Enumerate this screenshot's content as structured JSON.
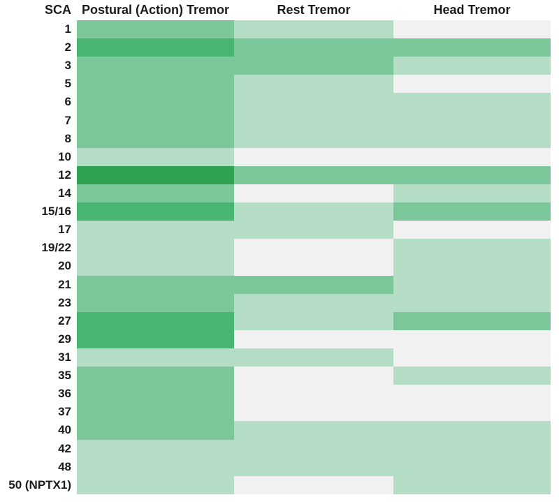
{
  "chart_data": {
    "type": "heatmap",
    "title": "",
    "row_label_header": "SCA",
    "columns": [
      "Postural (Action) Tremor",
      "Rest Tremor",
      "Head Tremor"
    ],
    "rows": [
      "1",
      "2",
      "3",
      "5",
      "6",
      "7",
      "8",
      "10",
      "12",
      "14",
      "15/16",
      "17",
      "19/22",
      "20",
      "21",
      "23",
      "27",
      "29",
      "31",
      "35",
      "36",
      "37",
      "40",
      "42",
      "48",
      "50 (NPTX1)"
    ],
    "values": [
      [
        2,
        1,
        0
      ],
      [
        3,
        2,
        2
      ],
      [
        2,
        2,
        1
      ],
      [
        2,
        1,
        0
      ],
      [
        2,
        1,
        1
      ],
      [
        2,
        1,
        1
      ],
      [
        2,
        1,
        1
      ],
      [
        1,
        0,
        0
      ],
      [
        4,
        2,
        2
      ],
      [
        2,
        0,
        1
      ],
      [
        3,
        1,
        2
      ],
      [
        1,
        1,
        0
      ],
      [
        1,
        0,
        1
      ],
      [
        1,
        0,
        1
      ],
      [
        2,
        2,
        1
      ],
      [
        2,
        1,
        1
      ],
      [
        3,
        1,
        2
      ],
      [
        3,
        0,
        0
      ],
      [
        1,
        1,
        0
      ],
      [
        2,
        0,
        1
      ],
      [
        2,
        0,
        0
      ],
      [
        2,
        0,
        0
      ],
      [
        2,
        1,
        1
      ],
      [
        1,
        1,
        1
      ],
      [
        1,
        1,
        1
      ],
      [
        1,
        0,
        1
      ]
    ],
    "palette": {
      "0": "#F0F1F0",
      "1": "#B5DDC6",
      "2": "#7CC79A",
      "3": "#49B572",
      "4": "#2FA351"
    },
    "layout": {
      "grid": false,
      "legend": "none",
      "background": "#FFFFFF"
    }
  }
}
